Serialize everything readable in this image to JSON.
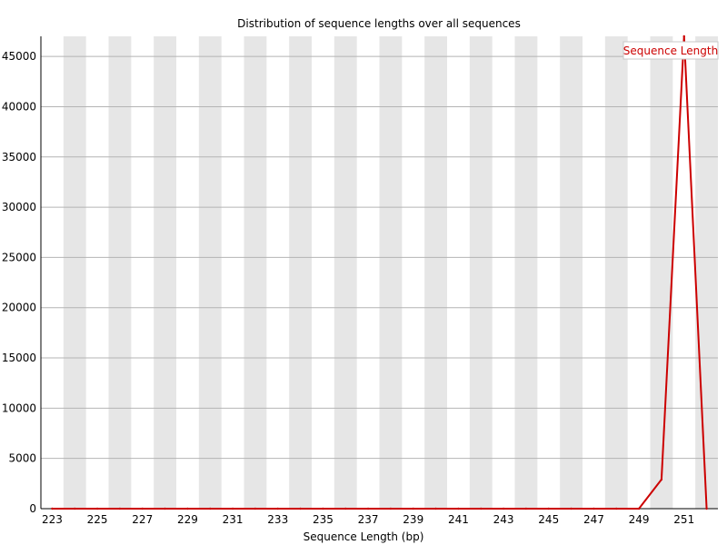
{
  "chart_data": {
    "type": "line",
    "title": "Distribution of sequence lengths over all sequences",
    "xlabel": "Sequence Length (bp)",
    "ylabel": "",
    "x": [
      223,
      224,
      225,
      226,
      227,
      228,
      229,
      230,
      231,
      232,
      233,
      234,
      235,
      236,
      237,
      238,
      239,
      240,
      241,
      242,
      243,
      244,
      245,
      246,
      247,
      248,
      249,
      250,
      251,
      252
    ],
    "x_tick_labels": [
      "223",
      "225",
      "227",
      "229",
      "231",
      "233",
      "235",
      "237",
      "239",
      "241",
      "243",
      "245",
      "247",
      "249",
      "251"
    ],
    "y_ticks": [
      0,
      5000,
      10000,
      15000,
      20000,
      25000,
      30000,
      35000,
      40000,
      45000
    ],
    "y_tick_labels": [
      "0",
      "5000",
      "10000",
      "15000",
      "20000",
      "25000",
      "30000",
      "35000",
      "40000",
      "45000"
    ],
    "ylim": [
      0,
      47000
    ],
    "xlim": [
      222.5,
      252.5
    ],
    "grid": "horizontal lines with alternating vertical bands",
    "legend_position": "top-right",
    "series": [
      {
        "name": "Sequence Length",
        "color": "#cc0000",
        "values": [
          0,
          0,
          0,
          0,
          0,
          0,
          0,
          0,
          0,
          0,
          0,
          0,
          0,
          0,
          0,
          0,
          0,
          0,
          0,
          0,
          0,
          0,
          0,
          0,
          0,
          0,
          0,
          2900,
          47000,
          0
        ]
      }
    ]
  }
}
